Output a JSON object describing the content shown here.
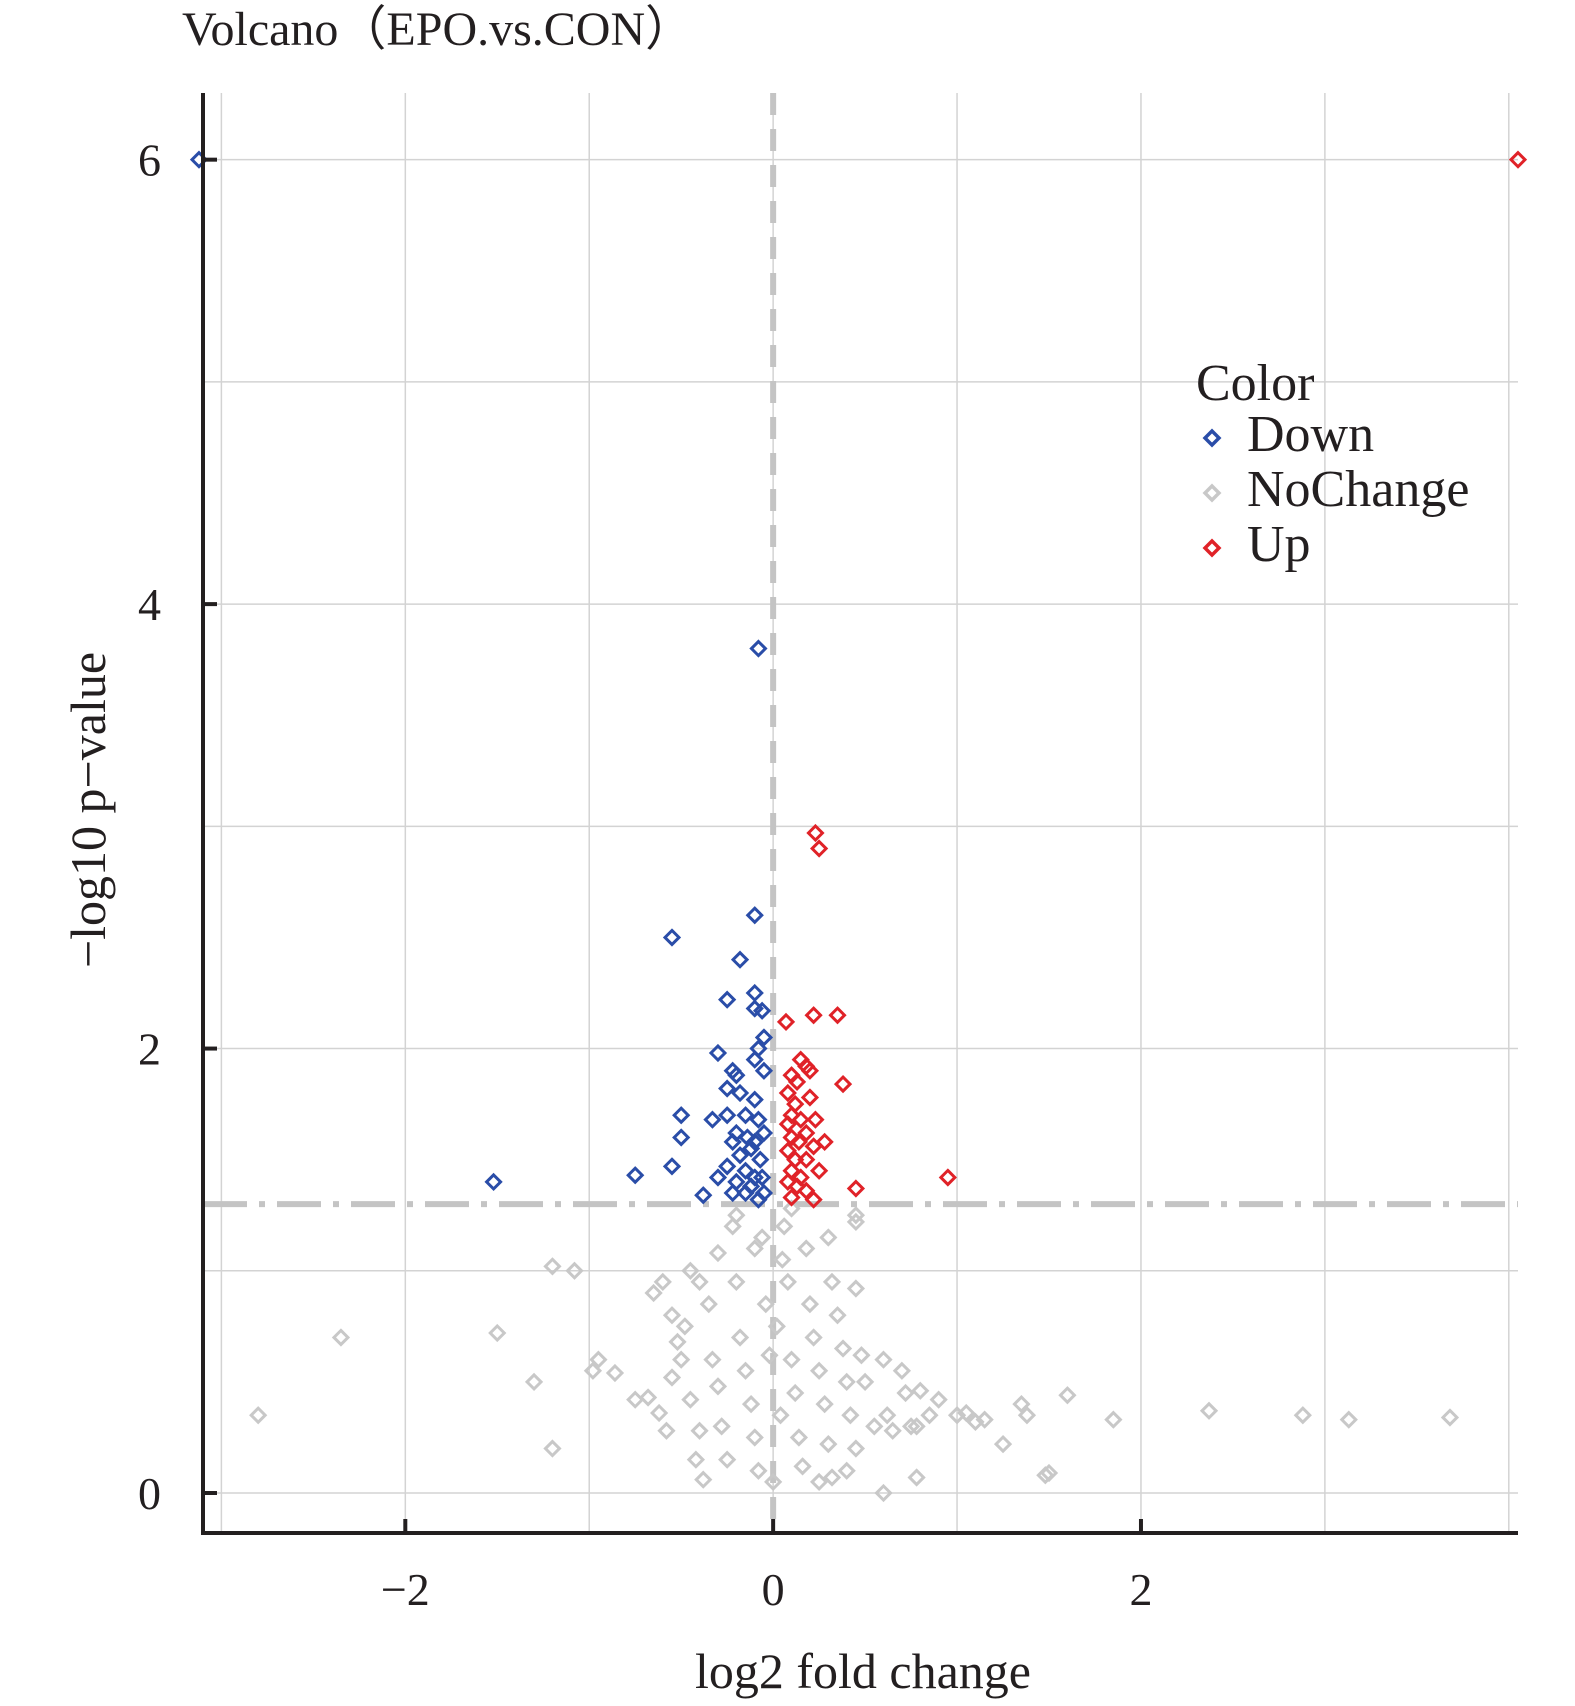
{
  "chart_data": {
    "type": "scatter",
    "title": "Volcano（EPO.vs.CON）",
    "xlabel": "log2 fold change",
    "ylabel": "−log10 p−value",
    "xlim": [
      -3.1,
      4.05
    ],
    "ylim": [
      -0.18,
      6.3
    ],
    "x_ticks": [
      -2,
      0,
      2
    ],
    "x_tick_labels": [
      "−2",
      "0",
      "2"
    ],
    "y_ticks": [
      0,
      2,
      4,
      6
    ],
    "y_tick_labels": [
      "0",
      "2",
      "4",
      "6"
    ],
    "grid": true,
    "threshold_lines": {
      "x": 0,
      "y": 1.3
    },
    "legend": {
      "title": "Color",
      "placement": "right",
      "entries": [
        "Down",
        "NoChange",
        "Up"
      ]
    },
    "colors": {
      "Down": "#2a4da8",
      "NoChange": "#c8c8c8",
      "Up": "#e02228",
      "grid": "#d3d3d3",
      "axis": "#231f20"
    },
    "series": [
      {
        "name": "Down",
        "points": [
          [
            -3.15,
            6.0
          ],
          [
            -0.08,
            3.8
          ],
          [
            -0.1,
            2.6
          ],
          [
            -0.55,
            2.5
          ],
          [
            -0.18,
            2.4
          ],
          [
            -0.25,
            2.22
          ],
          [
            -0.1,
            2.25
          ],
          [
            -0.1,
            2.18
          ],
          [
            -0.06,
            2.17
          ],
          [
            -0.05,
            2.05
          ],
          [
            -0.3,
            1.98
          ],
          [
            -0.08,
            2.0
          ],
          [
            -0.22,
            1.9
          ],
          [
            -0.2,
            1.88
          ],
          [
            -0.1,
            1.95
          ],
          [
            -0.05,
            1.9
          ],
          [
            -0.25,
            1.82
          ],
          [
            -0.18,
            1.8
          ],
          [
            -0.1,
            1.77
          ],
          [
            -0.5,
            1.7
          ],
          [
            -0.33,
            1.68
          ],
          [
            -0.25,
            1.7
          ],
          [
            -0.15,
            1.7
          ],
          [
            -0.08,
            1.68
          ],
          [
            -0.05,
            1.62
          ],
          [
            -0.2,
            1.62
          ],
          [
            -0.14,
            1.6
          ],
          [
            -0.1,
            1.58
          ],
          [
            -0.5,
            1.6
          ],
          [
            -0.22,
            1.58
          ],
          [
            -0.12,
            1.55
          ],
          [
            -0.07,
            1.5
          ],
          [
            -0.18,
            1.52
          ],
          [
            -0.25,
            1.47
          ],
          [
            -0.15,
            1.45
          ],
          [
            -0.1,
            1.42
          ],
          [
            -0.06,
            1.42
          ],
          [
            -0.55,
            1.47
          ],
          [
            -0.75,
            1.43
          ],
          [
            -0.3,
            1.42
          ],
          [
            -1.52,
            1.4
          ],
          [
            -0.2,
            1.4
          ],
          [
            -0.12,
            1.38
          ],
          [
            -0.38,
            1.34
          ],
          [
            -0.15,
            1.35
          ],
          [
            -0.08,
            1.32
          ],
          [
            -0.05,
            1.35
          ],
          [
            -0.22,
            1.35
          ]
        ]
      },
      {
        "name": "NoChange",
        "points": [
          [
            -2.8,
            0.35
          ],
          [
            -2.35,
            0.7
          ],
          [
            -1.5,
            0.72
          ],
          [
            -1.2,
            1.02
          ],
          [
            -1.08,
            1.0
          ],
          [
            -1.2,
            0.2
          ],
          [
            -1.3,
            0.5
          ],
          [
            -0.98,
            0.55
          ],
          [
            -0.95,
            0.6
          ],
          [
            -0.86,
            0.54
          ],
          [
            -0.75,
            0.42
          ],
          [
            -0.68,
            0.43
          ],
          [
            -0.62,
            0.36
          ],
          [
            -0.58,
            0.28
          ],
          [
            -0.55,
            0.52
          ],
          [
            -0.45,
            0.42
          ],
          [
            -0.4,
            0.28
          ],
          [
            -0.38,
            0.06
          ],
          [
            -0.65,
            0.9
          ],
          [
            -0.6,
            0.95
          ],
          [
            -0.55,
            0.8
          ],
          [
            -0.52,
            0.68
          ],
          [
            -0.48,
            0.75
          ],
          [
            -0.45,
            1.0
          ],
          [
            -0.35,
            0.85
          ],
          [
            -0.33,
            0.6
          ],
          [
            -0.3,
            0.48
          ],
          [
            -0.28,
            0.3
          ],
          [
            -0.25,
            0.15
          ],
          [
            -0.22,
            1.2
          ],
          [
            -0.2,
            0.95
          ],
          [
            -0.18,
            0.7
          ],
          [
            -0.15,
            0.55
          ],
          [
            -0.12,
            0.4
          ],
          [
            -0.1,
            0.25
          ],
          [
            -0.08,
            0.1
          ],
          [
            -0.06,
            1.15
          ],
          [
            -0.04,
            0.85
          ],
          [
            -0.02,
            0.62
          ],
          [
            0.0,
            0.05
          ],
          [
            0.02,
            0.75
          ],
          [
            0.04,
            0.35
          ],
          [
            0.06,
            1.2
          ],
          [
            0.08,
            0.95
          ],
          [
            0.1,
            0.6
          ],
          [
            0.12,
            0.45
          ],
          [
            0.14,
            0.25
          ],
          [
            0.16,
            0.12
          ],
          [
            0.18,
            1.1
          ],
          [
            0.2,
            0.85
          ],
          [
            0.22,
            0.7
          ],
          [
            0.25,
            0.55
          ],
          [
            0.28,
            0.4
          ],
          [
            0.3,
            0.22
          ],
          [
            0.32,
            0.95
          ],
          [
            0.35,
            0.8
          ],
          [
            0.38,
            0.65
          ],
          [
            0.4,
            0.5
          ],
          [
            0.42,
            0.35
          ],
          [
            0.45,
            0.2
          ],
          [
            0.45,
            1.25
          ],
          [
            0.45,
            1.22
          ],
          [
            0.45,
            0.92
          ],
          [
            0.48,
            0.62
          ],
          [
            0.5,
            0.5
          ],
          [
            0.55,
            0.3
          ],
          [
            0.6,
            0.6
          ],
          [
            0.62,
            0.35
          ],
          [
            0.65,
            0.28
          ],
          [
            0.7,
            0.55
          ],
          [
            0.72,
            0.45
          ],
          [
            0.75,
            0.3
          ],
          [
            0.78,
            0.3
          ],
          [
            0.8,
            0.46
          ],
          [
            0.85,
            0.35
          ],
          [
            0.9,
            0.42
          ],
          [
            1.0,
            0.35
          ],
          [
            1.05,
            0.36
          ],
          [
            1.1,
            0.32
          ],
          [
            1.15,
            0.33
          ],
          [
            1.25,
            0.22
          ],
          [
            1.35,
            0.4
          ],
          [
            1.38,
            0.35
          ],
          [
            1.48,
            0.08
          ],
          [
            1.5,
            0.09
          ],
          [
            1.6,
            0.44
          ],
          [
            1.85,
            0.33
          ],
          [
            0.6,
            0.0
          ],
          [
            0.78,
            0.07
          ],
          [
            0.4,
            0.1
          ],
          [
            0.32,
            0.07
          ],
          [
            0.25,
            0.05
          ],
          [
            2.37,
            0.37
          ],
          [
            2.88,
            0.35
          ],
          [
            3.13,
            0.33
          ],
          [
            3.68,
            0.34
          ],
          [
            -0.3,
            1.08
          ],
          [
            -0.4,
            0.95
          ],
          [
            -0.2,
            1.25
          ],
          [
            0.1,
            1.28
          ],
          [
            0.3,
            1.15
          ],
          [
            -0.1,
            1.1
          ],
          [
            0.05,
            1.05
          ],
          [
            -0.5,
            0.6
          ],
          [
            -0.42,
            0.15
          ]
        ]
      },
      {
        "name": "Up",
        "points": [
          [
            4.05,
            6.0
          ],
          [
            0.23,
            2.97
          ],
          [
            0.25,
            2.9
          ],
          [
            0.22,
            2.15
          ],
          [
            0.35,
            2.15
          ],
          [
            0.07,
            2.12
          ],
          [
            0.15,
            1.95
          ],
          [
            0.18,
            1.92
          ],
          [
            0.2,
            1.9
          ],
          [
            0.1,
            1.88
          ],
          [
            0.13,
            1.85
          ],
          [
            0.38,
            1.84
          ],
          [
            0.08,
            1.8
          ],
          [
            0.2,
            1.78
          ],
          [
            0.12,
            1.75
          ],
          [
            0.1,
            1.7
          ],
          [
            0.15,
            1.68
          ],
          [
            0.08,
            1.66
          ],
          [
            0.23,
            1.68
          ],
          [
            0.18,
            1.62
          ],
          [
            0.1,
            1.6
          ],
          [
            0.14,
            1.58
          ],
          [
            0.22,
            1.56
          ],
          [
            0.28,
            1.58
          ],
          [
            0.08,
            1.54
          ],
          [
            0.12,
            1.5
          ],
          [
            0.18,
            1.5
          ],
          [
            0.1,
            1.45
          ],
          [
            0.15,
            1.42
          ],
          [
            0.25,
            1.45
          ],
          [
            0.08,
            1.4
          ],
          [
            0.13,
            1.38
          ],
          [
            0.18,
            1.36
          ],
          [
            0.1,
            1.33
          ],
          [
            0.95,
            1.42
          ],
          [
            0.45,
            1.37
          ],
          [
            0.22,
            1.32
          ]
        ]
      }
    ]
  }
}
